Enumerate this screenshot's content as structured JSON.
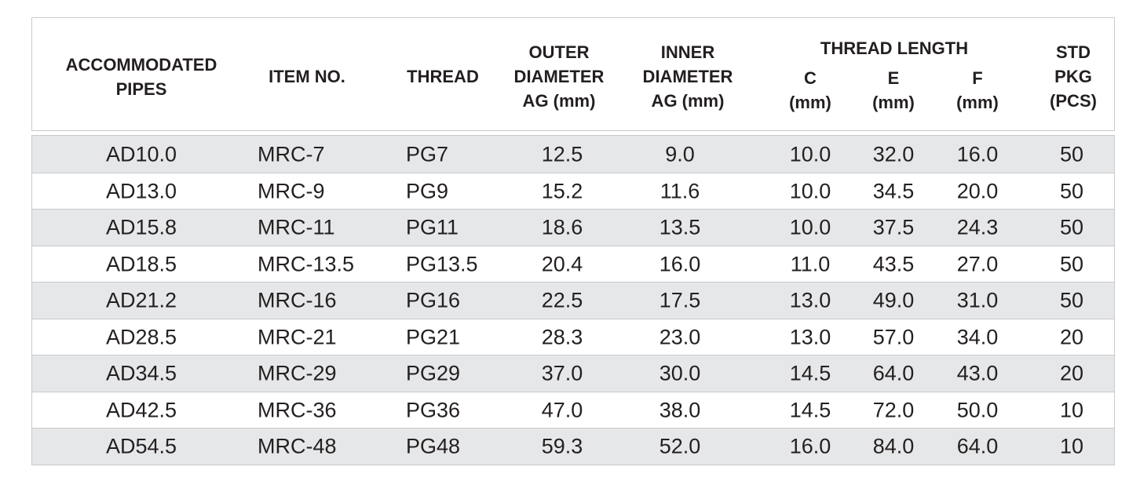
{
  "table": {
    "header": {
      "columns": [
        {
          "lines": [
            "ACCOMMODATED",
            "PIPES"
          ]
        },
        {
          "lines": [
            "ITEM NO."
          ]
        },
        {
          "lines": [
            "THREAD"
          ]
        },
        {
          "lines": [
            "OUTER",
            "DIAMETER",
            "AG (mm)"
          ]
        },
        {
          "lines": [
            "INNER",
            "DIAMETER",
            "AG (mm)"
          ]
        },
        {
          "title": "THREAD LENGTH",
          "subcolumns": [
            {
              "lines": [
                "C",
                "(mm)"
              ]
            },
            {
              "lines": [
                "E",
                "(mm)"
              ]
            },
            {
              "lines": [
                "F",
                "(mm)"
              ]
            }
          ]
        },
        {
          "lines": [
            "STD",
            "PKG",
            "(PCS)"
          ]
        }
      ]
    },
    "rows": [
      [
        "AD10.0",
        "MRC-7",
        "PG7",
        "12.5",
        "9.0",
        "10.0",
        "32.0",
        "16.0",
        "50"
      ],
      [
        "AD13.0",
        "MRC-9",
        "PG9",
        "15.2",
        "11.6",
        "10.0",
        "34.5",
        "20.0",
        "50"
      ],
      [
        "AD15.8",
        "MRC-11",
        "PG11",
        "18.6",
        "13.5",
        "10.0",
        "37.5",
        "24.3",
        "50"
      ],
      [
        "AD18.5",
        "MRC-13.5",
        "PG13.5",
        "20.4",
        "16.0",
        "11.0",
        "43.5",
        "27.0",
        "50"
      ],
      [
        "AD21.2",
        "MRC-16",
        "PG16",
        "22.5",
        "17.5",
        "13.0",
        "49.0",
        "31.0",
        "50"
      ],
      [
        "AD28.5",
        "MRC-21",
        "PG21",
        "28.3",
        "23.0",
        "13.0",
        "57.0",
        "34.0",
        "20"
      ],
      [
        "AD34.5",
        "MRC-29",
        "PG29",
        "37.0",
        "30.0",
        "14.5",
        "64.0",
        "43.0",
        "20"
      ],
      [
        "AD42.5",
        "MRC-36",
        "PG36",
        "47.0",
        "38.0",
        "14.5",
        "72.0",
        "50.0",
        "10"
      ],
      [
        "AD54.5",
        "MRC-48",
        "PG48",
        "59.3",
        "52.0",
        "16.0",
        "84.0",
        "64.0",
        "10"
      ]
    ]
  }
}
